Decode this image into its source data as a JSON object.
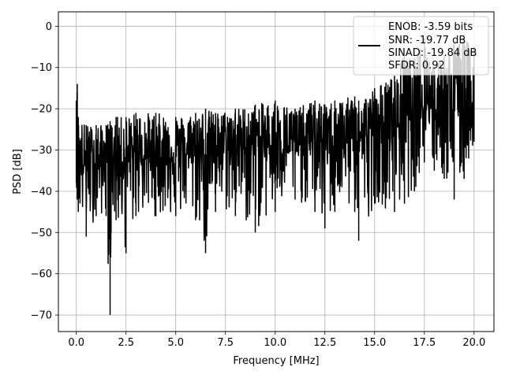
{
  "chart_data": {
    "type": "line",
    "title": "",
    "xlabel": "Frequency [MHz]",
    "ylabel": "PSD [dB]",
    "xlim": [
      -0.9,
      21.0
    ],
    "ylim": [
      -74,
      3.5
    ],
    "xticks": [
      0.0,
      2.5,
      5.0,
      7.5,
      10.0,
      12.5,
      15.0,
      17.5,
      20.0
    ],
    "xtick_labels": [
      "0.0",
      "2.5",
      "5.0",
      "7.5",
      "10.0",
      "12.5",
      "15.0",
      "17.5",
      "20.0"
    ],
    "yticks": [
      0,
      -10,
      -20,
      -30,
      -40,
      -50,
      -60,
      -70
    ],
    "ytick_labels": [
      "0",
      "−10",
      "−20",
      "−30",
      "−40",
      "−50",
      "−60",
      "−70"
    ],
    "grid": true,
    "legend_position": "top-right",
    "legend": [
      "ENOB: -3.59 bits",
      "SNR: -19.77 dB",
      "SINAD: -19.84 dB",
      "SFDR: 0.92"
    ],
    "series": [
      {
        "color": "#000000",
        "x": [
          0.0,
          0.05,
          0.1,
          0.5,
          1.0,
          1.5,
          1.7,
          1.75,
          2.0,
          2.5,
          3.0,
          4.0,
          5.0,
          6.0,
          6.5,
          7.0,
          8.0,
          9.0,
          10.0,
          11.0,
          12.0,
          12.5,
          13.0,
          14.0,
          14.2,
          15.0,
          16.0,
          16.5,
          17.0,
          17.5,
          18.0,
          18.5,
          19.0,
          19.5,
          20.0
        ],
        "y_upper": [
          -18,
          -14,
          -22,
          -24,
          -24,
          -24,
          -23,
          -24,
          -22,
          -22,
          -21,
          -21,
          -22,
          -21,
          -20,
          -21,
          -20,
          -19,
          -18,
          -20,
          -18,
          -19,
          -18,
          -17,
          -18,
          -15,
          -12,
          -7,
          -8,
          -3,
          -10,
          -7,
          -4,
          -3,
          -5
        ],
        "y_center": [
          -30,
          -32,
          -33,
          -34,
          -33,
          -33,
          -33,
          -33,
          -32,
          -33,
          -32,
          -32,
          -31,
          -31,
          -31,
          -30,
          -30,
          -29,
          -29,
          -29,
          -28,
          -28,
          -28,
          -27,
          -27,
          -26,
          -25,
          -22,
          -20,
          -18,
          -20,
          -21,
          -20,
          -19,
          -22
        ],
        "y_lower": [
          -38,
          -42,
          -45,
          -51,
          -46,
          -46,
          -70,
          -50,
          -47,
          -55,
          -46,
          -46,
          -46,
          -47,
          -55,
          -45,
          -46,
          -50,
          -45,
          -42,
          -45,
          -49,
          -45,
          -45,
          -52,
          -43,
          -45,
          -43,
          -40,
          -33,
          -35,
          -37,
          -42,
          -37,
          -28
        ]
      }
    ]
  }
}
